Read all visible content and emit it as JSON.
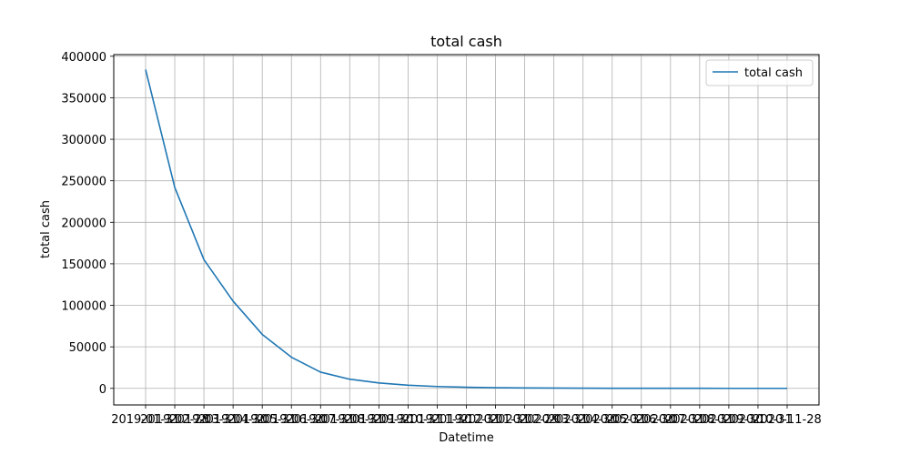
{
  "chart_data": {
    "type": "line",
    "title": "total cash",
    "xlabel": "Datetime",
    "ylabel": "total cash",
    "ylim": [
      -20000,
      402000
    ],
    "yticks": [
      0,
      50000,
      100000,
      150000,
      200000,
      250000,
      300000,
      350000,
      400000
    ],
    "grid": true,
    "legend_position": "top-right",
    "x": [
      "2019-01-31",
      "2019-02-28",
      "2019-03-31",
      "2019-04-30",
      "2019-05-31",
      "2019-06-30",
      "2019-07-31",
      "2019-08-31",
      "2019-09-30",
      "2019-10-31",
      "2019-11-30",
      "2019-12-31",
      "2020-01-31",
      "2020-02-29",
      "2020-03-31",
      "2020-04-30",
      "2020-05-31",
      "2020-06-30",
      "2020-07-31",
      "2020-08-31",
      "2020-09-30",
      "2020-10-31",
      "2020-11-28"
    ],
    "xtick_labels": [
      "2019-01-31",
      "2019-02-28",
      "2019-03-31",
      "2019-04-30",
      "2019-05-31",
      "2019-06-30",
      "2019-07-31",
      "2019-08-31",
      "2019-09-30",
      "2019-10-31",
      "2019-11-30",
      "2019-12-31",
      "2020-01-31",
      "2020-02-29",
      "2020-03-31",
      "2020-04-30",
      "2020-05-31",
      "2020-06-30",
      "2020-07-31",
      "2020-08-31",
      "2020-09-30",
      "2020-10-31",
      "2020-11-28"
    ],
    "series": [
      {
        "name": "total cash",
        "color": "#1f77b4",
        "values": [
          384000,
          242000,
          155000,
          105000,
          65000,
          37500,
          19500,
          11000,
          6500,
          3800,
          2200,
          1300,
          800,
          500,
          300,
          180,
          110,
          70,
          40,
          25,
          15,
          10,
          5
        ]
      }
    ]
  }
}
